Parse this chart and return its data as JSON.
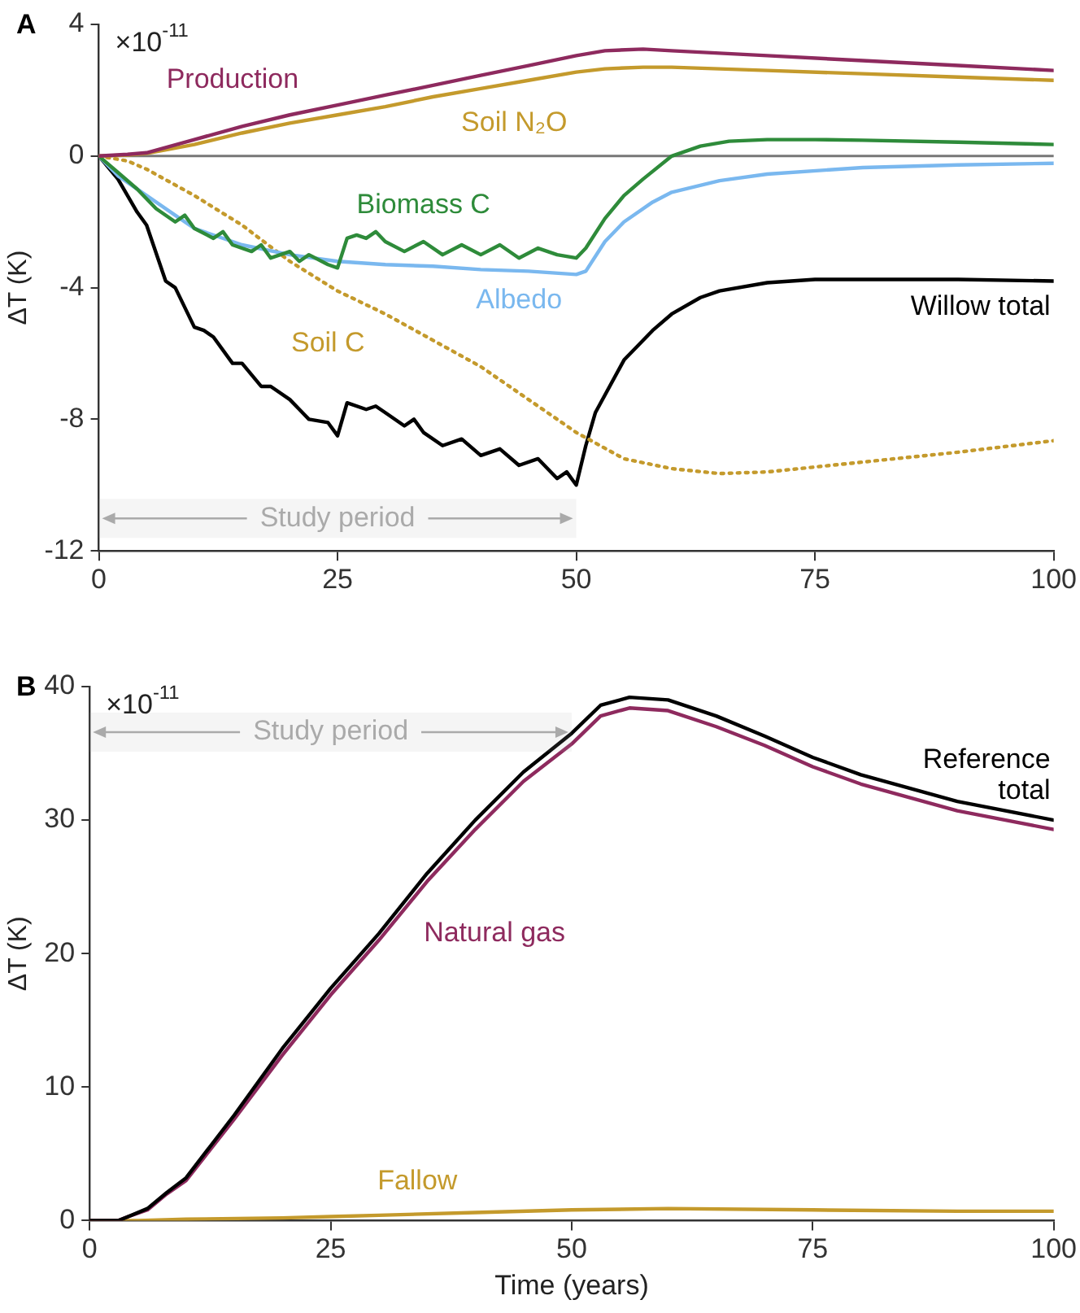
{
  "chart_data": [
    {
      "type": "line",
      "title": "A",
      "ylabel": "ΔT (K)",
      "xlim": [
        0,
        100
      ],
      "xticks": [
        0,
        25,
        50,
        75,
        100
      ],
      "ylim": [
        -12,
        4
      ],
      "yticks": [
        -12,
        -8,
        -4,
        0,
        4
      ],
      "grid": false,
      "legend": false,
      "marker": "none",
      "annotations": [
        "×10$^{-11}$"
      ],
      "bands": [
        {
          "axis": "x",
          "from": 0,
          "to": 50,
          "label": "Study period",
          "color": "#aaaaaa"
        }
      ],
      "ref_lines": [
        {
          "axis": "y",
          "value": 0,
          "color": "#777777"
        }
      ],
      "series": [
        {
          "name": "Production",
          "color": "#8e2a5e",
          "x": [
            0,
            3,
            5,
            10,
            15,
            20,
            25,
            30,
            35,
            40,
            45,
            50,
            53,
            57,
            60,
            70,
            80,
            90,
            100
          ],
          "values": [
            0,
            0.05,
            0.1,
            0.5,
            0.9,
            1.25,
            1.55,
            1.85,
            2.15,
            2.45,
            2.75,
            3.05,
            3.2,
            3.25,
            3.2,
            3.05,
            2.9,
            2.75,
            2.6
          ]
        },
        {
          "name": "Soil N₂O",
          "color": "#c49a2c",
          "x": [
            0,
            3,
            5,
            10,
            15,
            20,
            25,
            30,
            35,
            40,
            45,
            50,
            53,
            57,
            60,
            70,
            80,
            90,
            100
          ],
          "values": [
            0,
            0.03,
            0.08,
            0.35,
            0.7,
            1.0,
            1.25,
            1.5,
            1.8,
            2.05,
            2.3,
            2.55,
            2.65,
            2.7,
            2.7,
            2.6,
            2.5,
            2.4,
            2.3
          ]
        },
        {
          "name": "Biomass C",
          "color": "#2e8b3a",
          "x": [
            0,
            2,
            4,
            6,
            8,
            9,
            10,
            12,
            13,
            14,
            16,
            17,
            18,
            20,
            21,
            22,
            24,
            25,
            26,
            27,
            28,
            29,
            30,
            32,
            34,
            36,
            38,
            40,
            42,
            44,
            46,
            48,
            50,
            51,
            53,
            55,
            57,
            60,
            63,
            66,
            70,
            75,
            80,
            90,
            100
          ],
          "values": [
            0,
            -0.5,
            -1.0,
            -1.6,
            -2.0,
            -1.8,
            -2.2,
            -2.5,
            -2.3,
            -2.7,
            -2.9,
            -2.7,
            -3.1,
            -2.9,
            -3.2,
            -3.0,
            -3.3,
            -3.4,
            -2.5,
            -2.4,
            -2.5,
            -2.3,
            -2.6,
            -2.9,
            -2.6,
            -3.0,
            -2.7,
            -3.0,
            -2.7,
            -3.1,
            -2.8,
            -3.0,
            -3.1,
            -2.8,
            -1.9,
            -1.2,
            -0.7,
            0,
            0.3,
            0.45,
            0.5,
            0.5,
            0.48,
            0.42,
            0.35
          ]
        },
        {
          "name": "Albedo",
          "color": "#7ab8ef",
          "x": [
            0,
            2,
            5,
            8,
            10,
            15,
            20,
            25,
            30,
            35,
            40,
            45,
            50,
            51,
            53,
            55,
            58,
            60,
            65,
            70,
            80,
            90,
            100
          ],
          "values": [
            0,
            -0.6,
            -1.2,
            -1.8,
            -2.2,
            -2.7,
            -3.0,
            -3.2,
            -3.3,
            -3.35,
            -3.45,
            -3.5,
            -3.6,
            -3.5,
            -2.6,
            -2.0,
            -1.4,
            -1.1,
            -0.75,
            -0.55,
            -0.35,
            -0.27,
            -0.22
          ]
        },
        {
          "name": "Soil C",
          "color": "#c49a2c",
          "line_style": "dotted",
          "x": [
            0,
            3,
            5,
            10,
            15,
            20,
            25,
            30,
            35,
            40,
            45,
            50,
            55,
            60,
            65,
            70,
            75,
            80,
            90,
            100
          ],
          "values": [
            0,
            -0.15,
            -0.4,
            -1.2,
            -2.1,
            -3.2,
            -4.1,
            -4.8,
            -5.6,
            -6.4,
            -7.4,
            -8.4,
            -9.2,
            -9.5,
            -9.65,
            -9.6,
            -9.45,
            -9.3,
            -9.0,
            -8.65
          ]
        },
        {
          "name": "Willow total",
          "color": "#000000",
          "x": [
            0,
            2,
            4,
            5,
            7,
            8,
            10,
            11,
            12,
            14,
            15,
            17,
            18,
            20,
            21,
            22,
            24,
            25,
            26,
            28,
            29,
            30,
            32,
            33,
            34,
            36,
            38,
            40,
            42,
            44,
            46,
            48,
            49,
            50,
            51,
            52,
            55,
            58,
            60,
            63,
            65,
            70,
            75,
            80,
            90,
            100
          ],
          "values": [
            0,
            -0.7,
            -1.7,
            -2.1,
            -3.8,
            -4.0,
            -5.2,
            -5.3,
            -5.5,
            -6.3,
            -6.3,
            -7.0,
            -7.0,
            -7.4,
            -7.7,
            -8.0,
            -8.1,
            -8.5,
            -7.5,
            -7.7,
            -7.6,
            -7.8,
            -8.2,
            -8.0,
            -8.4,
            -8.8,
            -8.6,
            -9.1,
            -8.9,
            -9.4,
            -9.2,
            -9.8,
            -9.6,
            -10.0,
            -8.8,
            -7.8,
            -6.2,
            -5.3,
            -4.8,
            -4.3,
            -4.1,
            -3.85,
            -3.75,
            -3.75,
            -3.75,
            -3.8
          ]
        }
      ]
    },
    {
      "type": "line",
      "title": "B",
      "xlabel": "Time (years)",
      "ylabel": "ΔT (K)",
      "xlim": [
        0,
        100
      ],
      "xticks": [
        0,
        25,
        50,
        75,
        100
      ],
      "ylim": [
        0,
        40
      ],
      "yticks": [
        0,
        10,
        20,
        30,
        40
      ],
      "grid": false,
      "legend": false,
      "marker": "none",
      "annotations": [
        "×10$^{-11}$"
      ],
      "bands": [
        {
          "axis": "x",
          "from": 0,
          "to": 50,
          "label": "Study period",
          "color": "#aaaaaa"
        }
      ],
      "series": [
        {
          "name": "Reference total",
          "color": "#000000",
          "x": [
            0,
            3,
            4,
            6,
            8,
            10,
            15,
            20,
            25,
            30,
            35,
            40,
            45,
            50,
            53,
            56,
            60,
            65,
            70,
            75,
            80,
            90,
            100
          ],
          "values": [
            0,
            0,
            0.3,
            0.9,
            2.1,
            3.2,
            7.9,
            12.9,
            17.4,
            21.5,
            26.0,
            30.0,
            33.6,
            36.5,
            38.6,
            39.2,
            39.0,
            37.8,
            36.3,
            34.7,
            33.4,
            31.4,
            30.0
          ]
        },
        {
          "name": "Natural gas",
          "color": "#8e2a5e",
          "x": [
            0,
            3,
            4,
            6,
            8,
            10,
            15,
            20,
            25,
            30,
            35,
            40,
            45,
            50,
            53,
            56,
            60,
            65,
            70,
            75,
            80,
            90,
            100
          ],
          "values": [
            0,
            0,
            0.3,
            0.8,
            2.0,
            3.0,
            7.6,
            12.4,
            16.9,
            21.0,
            25.4,
            29.3,
            32.9,
            35.7,
            37.8,
            38.4,
            38.2,
            37.0,
            35.6,
            34.0,
            32.7,
            30.7,
            29.3
          ]
        },
        {
          "name": "Fallow",
          "color": "#c49a2c",
          "x": [
            0,
            5,
            10,
            20,
            25,
            30,
            40,
            50,
            60,
            75,
            90,
            100
          ],
          "values": [
            0,
            0,
            0.1,
            0.2,
            0.3,
            0.4,
            0.6,
            0.8,
            0.9,
            0.8,
            0.7,
            0.7
          ]
        }
      ]
    }
  ]
}
